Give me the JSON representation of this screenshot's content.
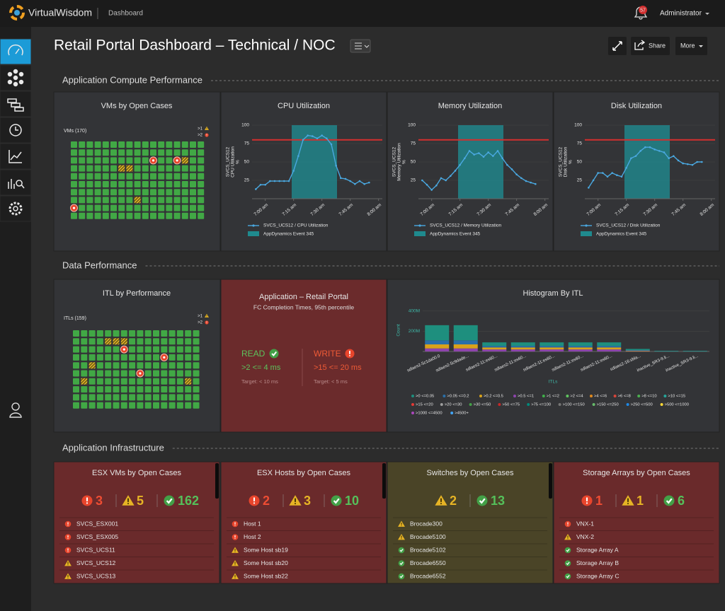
{
  "header": {
    "brand": "VirtualWisdom",
    "page": "Dashboard",
    "notifications": 57,
    "user": "Administrator"
  },
  "title": "Retail Portal Dashboard – Technical / NOC",
  "actions": {
    "share": "Share",
    "more": "More"
  },
  "sections": [
    "Application Compute Performance",
    "Data Performance",
    "Application Infrastructure"
  ],
  "vm_panel": {
    "title": "VMs by Open Cases",
    "label": "VMs (170)",
    "legend": [
      ">1",
      ">2"
    ]
  },
  "itl_panel": {
    "title": "ITL by Performance",
    "label": "ITLs (159)",
    "legend": [
      ">1",
      ">2"
    ]
  },
  "app_panel": {
    "title": "Application – Retail Portal",
    "subtitle": "FC Completion Times, 95th percentile",
    "read": {
      "label": "READ",
      "range": ">2 <= 4 ms",
      "target": "Target: < 10 ms"
    },
    "write": {
      "label": "WRITE",
      "range": ">15 <= 20 ms",
      "target": "Target: < 5 ms"
    }
  },
  "chart_data": [
    {
      "type": "line",
      "title": "CPU Utilization",
      "ylabel": [
        "SVCS_UCS12",
        "CPU Utilization",
        "%"
      ],
      "x": [
        -5,
        -2.5,
        0,
        2.5,
        5,
        7.5,
        10,
        12.5,
        15,
        17.5,
        20,
        22.5,
        25,
        27.5,
        30,
        32.5,
        35,
        37.5,
        40,
        42.5,
        45,
        47.5,
        50,
        52.5,
        55
      ],
      "series": [
        {
          "name": "SVCS_UCS12 / CPU Utilization",
          "color": "#4aa8e0",
          "values": [
            13,
            19,
            19,
            24,
            24,
            24,
            24,
            24,
            38,
            58,
            80,
            86,
            85,
            82,
            86,
            82,
            74,
            45,
            28,
            27,
            24,
            20,
            24,
            20,
            22
          ]
        }
      ],
      "event": {
        "name": "AppDynamics Event 345",
        "color": "#1f8a8e",
        "start": 14,
        "end": 38
      },
      "threshold": 80,
      "threshold_color": "#d32f2f",
      "xlim": [
        -7,
        62
      ],
      "xticks": [
        {
          "value": 0,
          "label": "7:00 am"
        },
        {
          "value": 15,
          "label": "7:15 am"
        },
        {
          "value": 30,
          "label": "7:30 am"
        },
        {
          "value": 45,
          "label": "7:45 am"
        },
        {
          "value": 60,
          "label": "8:00 am"
        }
      ],
      "ylim": [
        0,
        100
      ],
      "yticks": [
        25,
        50,
        75,
        100
      ],
      "grid": true
    },
    {
      "type": "line",
      "title": "Memory Utilization",
      "ylabel": [
        "SVCS_UCS12",
        "Memory Utilization",
        "%"
      ],
      "x": [
        -5,
        -2.5,
        0,
        2.5,
        5,
        7.5,
        10,
        12.5,
        15,
        17.5,
        20,
        22.5,
        25,
        27.5,
        30,
        32.5,
        35,
        37.5,
        40,
        42.5,
        45,
        47.5,
        50,
        52.5,
        55
      ],
      "series": [
        {
          "name": "SVCS_UCS12 / Memory Utilization",
          "color": "#4aa8e0",
          "values": [
            25,
            19,
            12,
            18,
            28,
            25,
            31,
            38,
            46,
            55,
            65,
            60,
            62,
            57,
            63,
            58,
            65,
            55,
            46,
            40,
            33,
            28,
            24,
            22,
            20
          ]
        }
      ],
      "event": {
        "name": "AppDynamics Event 345",
        "color": "#1f8a8e",
        "start": 14,
        "end": 38
      },
      "threshold": 80,
      "threshold_color": "#d32f2f",
      "xlim": [
        -7,
        62
      ],
      "xticks": [
        {
          "value": 0,
          "label": "7:00 am"
        },
        {
          "value": 15,
          "label": "7:15 am"
        },
        {
          "value": 30,
          "label": "7:30 am"
        },
        {
          "value": 45,
          "label": "7:45 am"
        },
        {
          "value": 60,
          "label": "8:00 am"
        }
      ],
      "ylim": [
        0,
        100
      ],
      "yticks": [
        25,
        50,
        75,
        100
      ],
      "grid": true
    },
    {
      "type": "line",
      "title": "Disk Utilization",
      "ylabel": [
        "SVCS_UCS12",
        "Disk Utilization",
        "%"
      ],
      "x": [
        -5,
        -2.5,
        0,
        2.5,
        5,
        7.5,
        10,
        12.5,
        15,
        17.5,
        20,
        22.5,
        25,
        27.5,
        30,
        32.5,
        35,
        37.5,
        40,
        42.5,
        45,
        47.5,
        50,
        52.5,
        55
      ],
      "series": [
        {
          "name": "SVCS_UCS12 / Disk Utilization",
          "color": "#4aa8e0",
          "values": [
            15,
            25,
            35,
            35,
            30,
            35,
            32,
            30,
            42,
            55,
            58,
            65,
            70,
            70,
            67,
            65,
            63,
            55,
            58,
            52,
            48,
            47,
            46,
            50,
            50
          ]
        }
      ],
      "event": {
        "name": "AppDynamics Event 345",
        "color": "#1f8a8e",
        "start": 14,
        "end": 38
      },
      "threshold": 80,
      "threshold_color": "#d32f2f",
      "xlim": [
        -7,
        62
      ],
      "xticks": [
        {
          "value": 0,
          "label": "7:00 am"
        },
        {
          "value": 15,
          "label": "7:15 am"
        },
        {
          "value": 30,
          "label": "7:30 am"
        },
        {
          "value": 45,
          "label": "7:45 am"
        },
        {
          "value": 60,
          "label": "8:00 am"
        }
      ],
      "ylim": [
        0,
        100
      ],
      "yticks": [
        25,
        50,
        75,
        100
      ],
      "grid": true
    },
    {
      "type": "stacked-bar",
      "title": "Histogram By ITL",
      "ylabel": "Count",
      "xlabel": "ITLs",
      "categories": [
        "sdlaes2-5c1da00.0",
        "sdlaes2-5c9dade...",
        "sdlaes2-11:es60...",
        "sdlaes2-11:es60...",
        "sdlaes2-11:es60...",
        "sdlaes2-11:es60...",
        "sdlaes2-11:es60...",
        "sdlaes2-16:sbla...",
        "inactive_SR3-9.li...",
        "inactive_SR3-9.li..."
      ],
      "ylim": [
        0,
        420000000
      ],
      "yticks": [
        {
          "value": 200000000,
          "label": "200M"
        },
        {
          "value": 400000000,
          "label": "400M"
        }
      ],
      "series": [
        {
          "name": ">0 <=0.05",
          "color": "#1e8f7e",
          "values": [
            150000000,
            150000000,
            35000000,
            35000000,
            35000000,
            35000000,
            35000000,
            12000000,
            5000000,
            5000000
          ]
        },
        {
          "name": ">0.05 <=0.2",
          "color": "#2a6fa8",
          "values": [
            40000000,
            40000000,
            15000000,
            15000000,
            15000000,
            15000000,
            15000000,
            6000000,
            2000000,
            2000000
          ]
        },
        {
          "name": ">0.2 <=0.5",
          "color": "#d9a21b",
          "values": [
            40000000,
            40000000,
            20000000,
            20000000,
            20000000,
            20000000,
            20000000,
            4000000,
            0,
            0
          ]
        },
        {
          "name": ">0.5 <=1",
          "color": "#8e44ad",
          "values": [
            30000000,
            30000000,
            20000000,
            20000000,
            20000000,
            20000000,
            20000000,
            3000000,
            0,
            0
          ]
        },
        {
          "name": ">1 <=2",
          "color": "#3fae49",
          "values": [
            0,
            0,
            0,
            0,
            0,
            0,
            0,
            0,
            0,
            0
          ]
        },
        {
          "name": ">2 <=4",
          "color": "#5fc35f",
          "values": [
            0,
            0,
            0,
            0,
            0,
            0,
            0,
            0,
            0,
            0
          ]
        },
        {
          "name": ">4 <=6",
          "color": "#e08a1e",
          "values": [
            0,
            0,
            0,
            0,
            0,
            0,
            0,
            0,
            0,
            0
          ]
        },
        {
          "name": ">6 <=8",
          "color": "#d8453a",
          "values": [
            0,
            0,
            0,
            0,
            0,
            0,
            0,
            0,
            0,
            0
          ]
        },
        {
          "name": ">8 <=10",
          "color": "#4caf50",
          "values": [
            0,
            0,
            0,
            0,
            0,
            0,
            0,
            0,
            0,
            0
          ]
        },
        {
          "name": ">10 <=15",
          "color": "#26a69a",
          "values": [
            0,
            0,
            0,
            0,
            0,
            0,
            0,
            0,
            0,
            0
          ]
        },
        {
          "name": ">15 <=20",
          "color": "#e53935",
          "values": [
            0,
            0,
            0,
            0,
            0,
            0,
            0,
            0,
            0,
            0
          ]
        },
        {
          "name": ">20 <=30",
          "color": "#9e9e9e",
          "values": [
            0,
            0,
            0,
            0,
            0,
            0,
            0,
            0,
            0,
            0
          ]
        },
        {
          "name": ">30 <=50",
          "color": "#43a047",
          "values": [
            0,
            0,
            0,
            0,
            0,
            0,
            0,
            0,
            0,
            0
          ]
        },
        {
          "name": ">50 <=75",
          "color": "#c62828",
          "values": [
            0,
            0,
            0,
            0,
            0,
            0,
            0,
            0,
            0,
            0
          ]
        },
        {
          "name": ">75 <=100",
          "color": "#00897b",
          "values": [
            0,
            0,
            0,
            0,
            0,
            0,
            0,
            0,
            0,
            0
          ]
        },
        {
          "name": ">100 <=150",
          "color": "#757575",
          "values": [
            0,
            0,
            0,
            0,
            0,
            0,
            0,
            0,
            0,
            0
          ]
        },
        {
          "name": ">150 <=250",
          "color": "#66bb6a",
          "values": [
            0,
            0,
            0,
            0,
            0,
            0,
            0,
            0,
            0,
            0
          ]
        },
        {
          "name": ">250 <=500",
          "color": "#1e88e5",
          "values": [
            0,
            0,
            0,
            0,
            0,
            0,
            0,
            0,
            0,
            0
          ]
        },
        {
          "name": ">500 <=1000",
          "color": "#fdd835",
          "values": [
            0,
            0,
            0,
            0,
            0,
            0,
            0,
            0,
            0,
            0
          ]
        },
        {
          "name": ">1000 <=4500",
          "color": "#ab47bc",
          "values": [
            0,
            0,
            0,
            0,
            0,
            0,
            0,
            0,
            0,
            0
          ]
        },
        {
          "name": ">4500+",
          "color": "#42a5f5",
          "values": [
            0,
            0,
            0,
            0,
            0,
            0,
            0,
            0,
            0,
            0
          ]
        }
      ]
    }
  ],
  "infra": [
    {
      "title": "ESX VMs by Open Cases",
      "tone": "#6a2a2b",
      "counts": [
        {
          "status": "error",
          "value": 3
        },
        {
          "status": "warning",
          "value": 5
        },
        {
          "status": "ok",
          "value": 162
        }
      ],
      "items": [
        {
          "status": "error",
          "name": "SVCS_ESX001"
        },
        {
          "status": "error",
          "name": "SVCS_ESX005"
        },
        {
          "status": "error",
          "name": "SVCS_UCS11"
        },
        {
          "status": "warning",
          "name": "SVCS_UCS12"
        },
        {
          "status": "warning",
          "name": "SVCS_UCS13"
        }
      ]
    },
    {
      "title": "ESX Hosts by Open Cases",
      "tone": "#6a2a2b",
      "counts": [
        {
          "status": "error",
          "value": 2
        },
        {
          "status": "warning",
          "value": 3
        },
        {
          "status": "ok",
          "value": 10
        }
      ],
      "items": [
        {
          "status": "error",
          "name": "Host 1"
        },
        {
          "status": "error",
          "name": "Host 2"
        },
        {
          "status": "warning",
          "name": "Some Host sb19"
        },
        {
          "status": "warning",
          "name": "Some Host sb20"
        },
        {
          "status": "warning",
          "name": "Some Host sb22"
        }
      ]
    },
    {
      "title": "Switches by Open Cases",
      "tone": "#4a4427",
      "counts": [
        {
          "status": "warning",
          "value": 2
        },
        {
          "status": "ok",
          "value": 13
        }
      ],
      "items": [
        {
          "status": "warning",
          "name": "Brocade300"
        },
        {
          "status": "warning",
          "name": "Brocade5100"
        },
        {
          "status": "ok",
          "name": "Brocade5102"
        },
        {
          "status": "ok",
          "name": "Brocade6550"
        },
        {
          "status": "ok",
          "name": "Brocade6552"
        }
      ]
    },
    {
      "title": "Storage Arrays by Open Cases",
      "tone": "#6a2a2b",
      "counts": [
        {
          "status": "error",
          "value": 1
        },
        {
          "status": "warning",
          "value": 1
        },
        {
          "status": "ok",
          "value": 6
        }
      ],
      "items": [
        {
          "status": "error",
          "name": "VNX-1"
        },
        {
          "status": "warning",
          "name": "VNX-2"
        },
        {
          "status": "ok",
          "name": "Storage Array A"
        },
        {
          "status": "ok",
          "name": "Storage Array B"
        },
        {
          "status": "ok",
          "name": "Storage Array C"
        }
      ]
    }
  ]
}
